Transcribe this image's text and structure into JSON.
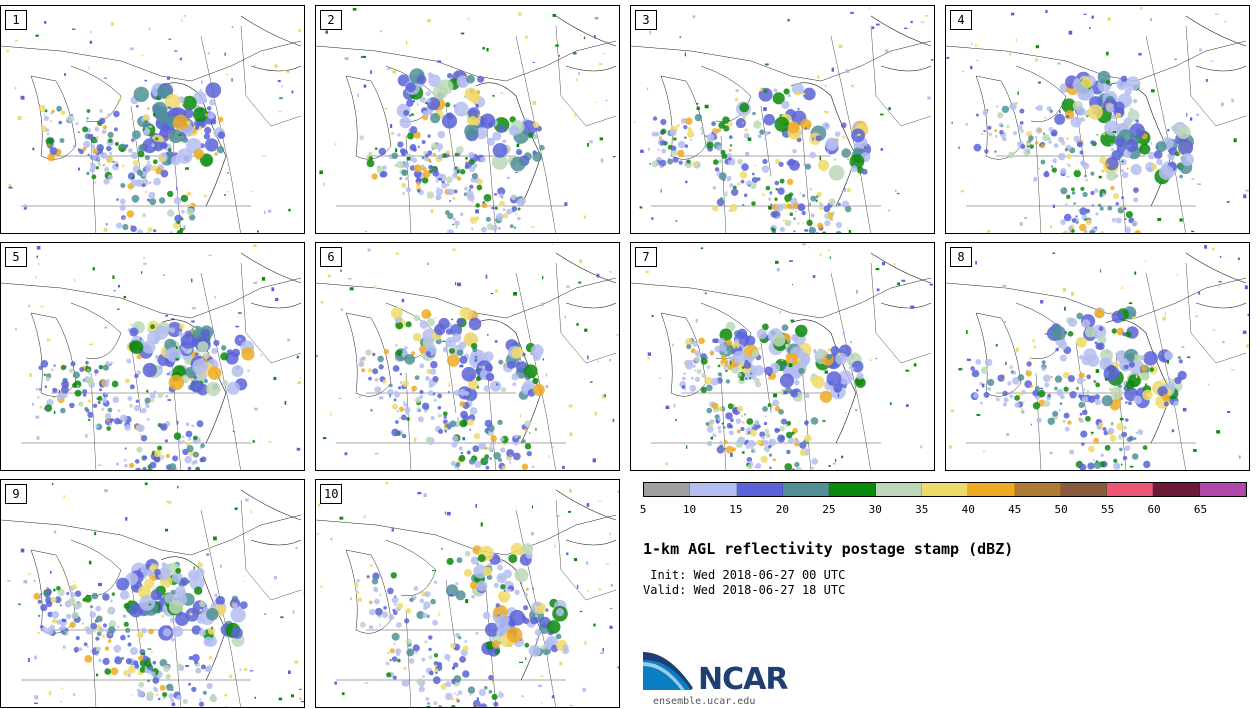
{
  "panels": [
    {
      "label": "1"
    },
    {
      "label": "2"
    },
    {
      "label": "3"
    },
    {
      "label": "4"
    },
    {
      "label": "5"
    },
    {
      "label": "6"
    },
    {
      "label": "7"
    },
    {
      "label": "8"
    },
    {
      "label": "9"
    },
    {
      "label": "10"
    }
  ],
  "colorbar": {
    "colors": [
      "#a0a0a0",
      "#b4bdf0",
      "#5a63d8",
      "#4f9196",
      "#0a8a0a",
      "#bcd8b8",
      "#eeda6a",
      "#eeaa22",
      "#b07a33",
      "#8a5a3e",
      "#ee5577",
      "#6b1a3a",
      "#b04aaa"
    ],
    "ticks": [
      "5",
      "10",
      "15",
      "20",
      "25",
      "30",
      "35",
      "40",
      "45",
      "50",
      "55",
      "60",
      "65"
    ]
  },
  "title": "1-km AGL reflectivity postage stamp (dBZ)",
  "init_text": " Init: Wed 2018-06-27 00 UTC",
  "valid_text": "Valid: Wed 2018-06-27 18 UTC",
  "logo": {
    "name": "NCAR",
    "url": "ensemble.ucar.edu"
  }
}
